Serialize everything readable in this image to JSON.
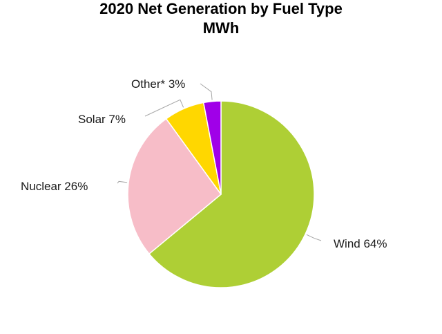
{
  "chart_data": {
    "type": "pie",
    "title": "2020 Net Generation by Fuel Type",
    "subtitle": "MWh",
    "slices": [
      {
        "name": "Wind",
        "value": 64,
        "label": "Wind 64%",
        "color": "#aecf35"
      },
      {
        "name": "Nuclear",
        "value": 26,
        "label": "Nuclear 26%",
        "color": "#f7bdc8"
      },
      {
        "name": "Solar",
        "value": 7,
        "label": "Solar 7%",
        "color": "#ffd700"
      },
      {
        "name": "Other*",
        "value": 3,
        "label": "Other* 3%",
        "color": "#a000e8"
      }
    ],
    "legend": "none",
    "data_labels": "outside with leader lines"
  }
}
